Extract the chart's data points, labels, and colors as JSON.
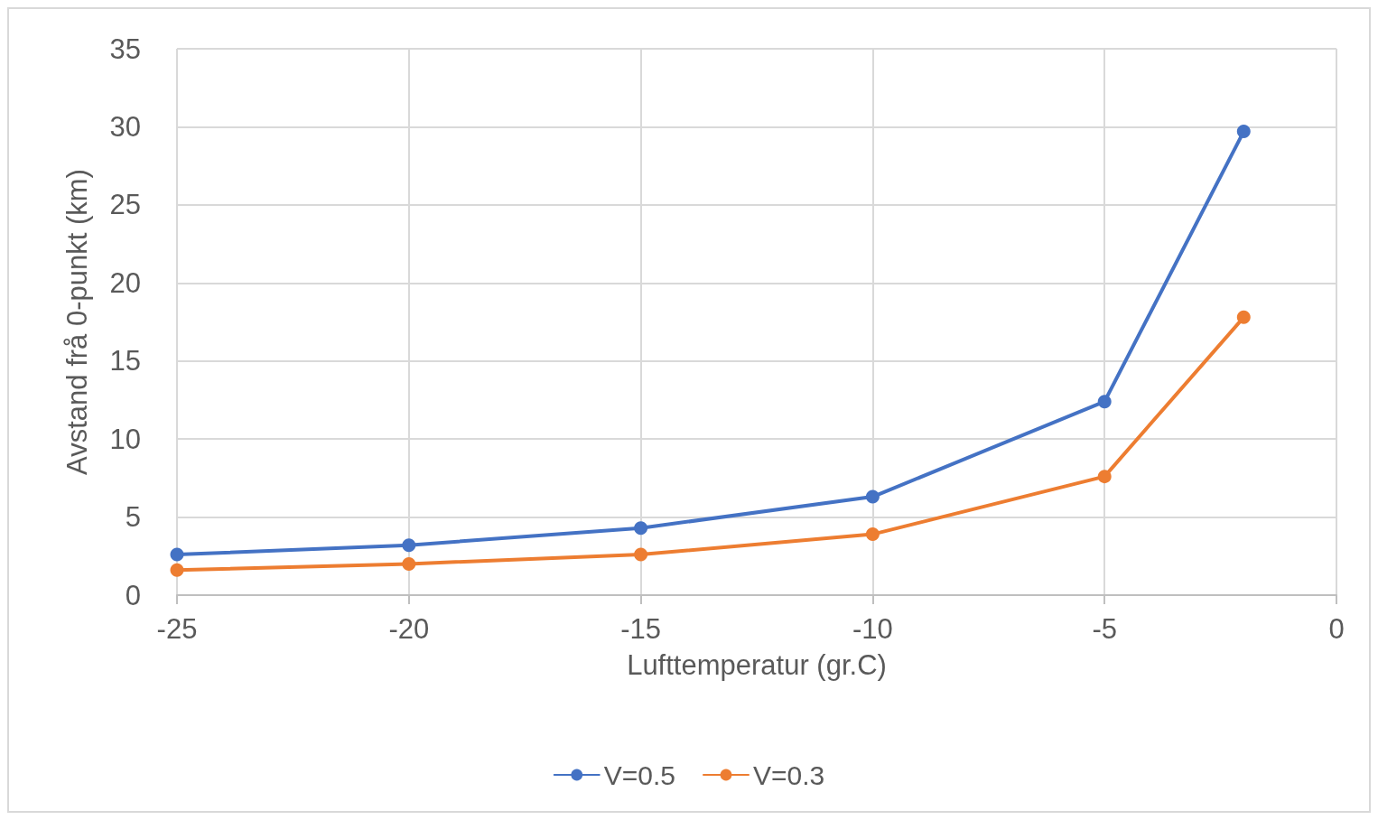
{
  "chart_data": {
    "type": "line",
    "xlabel": "Lufttemperatur (gr.C)",
    "ylabel": "Avstand frå 0-punkt (km)",
    "x": [
      -25,
      -20,
      -15,
      -10,
      -5,
      -2
    ],
    "series": [
      {
        "name": "V=0.5",
        "color": "#4472c4",
        "values": [
          2.6,
          3.2,
          4.3,
          6.3,
          12.4,
          29.7
        ]
      },
      {
        "name": "V=0.3",
        "color": "#ed7d31",
        "values": [
          1.6,
          2.0,
          2.6,
          3.9,
          7.6,
          17.8
        ]
      }
    ],
    "xlim": [
      -25,
      0
    ],
    "xticks": [
      -25,
      -20,
      -15,
      -10,
      -5,
      0
    ],
    "ylim": [
      0,
      35
    ],
    "yticks": [
      0,
      5,
      10,
      15,
      20,
      25,
      30,
      35
    ],
    "grid": true,
    "legend": "bottom",
    "marker": "circle",
    "line_style": "solid"
  }
}
